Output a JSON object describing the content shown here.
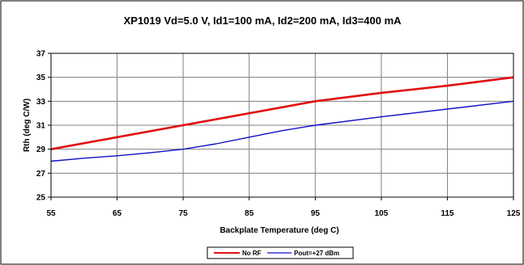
{
  "chart_data": {
    "type": "line",
    "title": "XP1019 Vd=5.0 V, Id1=100 mA, Id2=200 mA, Id3=400 mA",
    "xlabel": "Backplate Temperature (deg C)",
    "ylabel": "Rth (deg C/W)",
    "xlim": [
      55,
      125
    ],
    "ylim": [
      25,
      37
    ],
    "xticks": [
      55,
      65,
      75,
      85,
      95,
      105,
      115,
      125
    ],
    "yticks": [
      25,
      27,
      29,
      31,
      33,
      35,
      37
    ],
    "grid": true,
    "legend_position": "bottom",
    "series": [
      {
        "name": "No RF",
        "color": "#e01010",
        "x": [
          55,
          65,
          75,
          85,
          95,
          105,
          115,
          125
        ],
        "values": [
          29.0,
          30.0,
          31.0,
          32.0,
          33.0,
          33.7,
          34.3,
          35.0
        ]
      },
      {
        "name": "Pout=+27 dBm",
        "color": "#1010c8",
        "x": [
          55,
          60,
          65,
          70,
          75,
          80,
          85,
          90,
          95,
          105,
          115,
          125
        ],
        "values": [
          28.0,
          28.25,
          28.45,
          28.7,
          29.0,
          29.45,
          30.0,
          30.55,
          31.0,
          31.7,
          32.35,
          33.0
        ]
      }
    ]
  }
}
